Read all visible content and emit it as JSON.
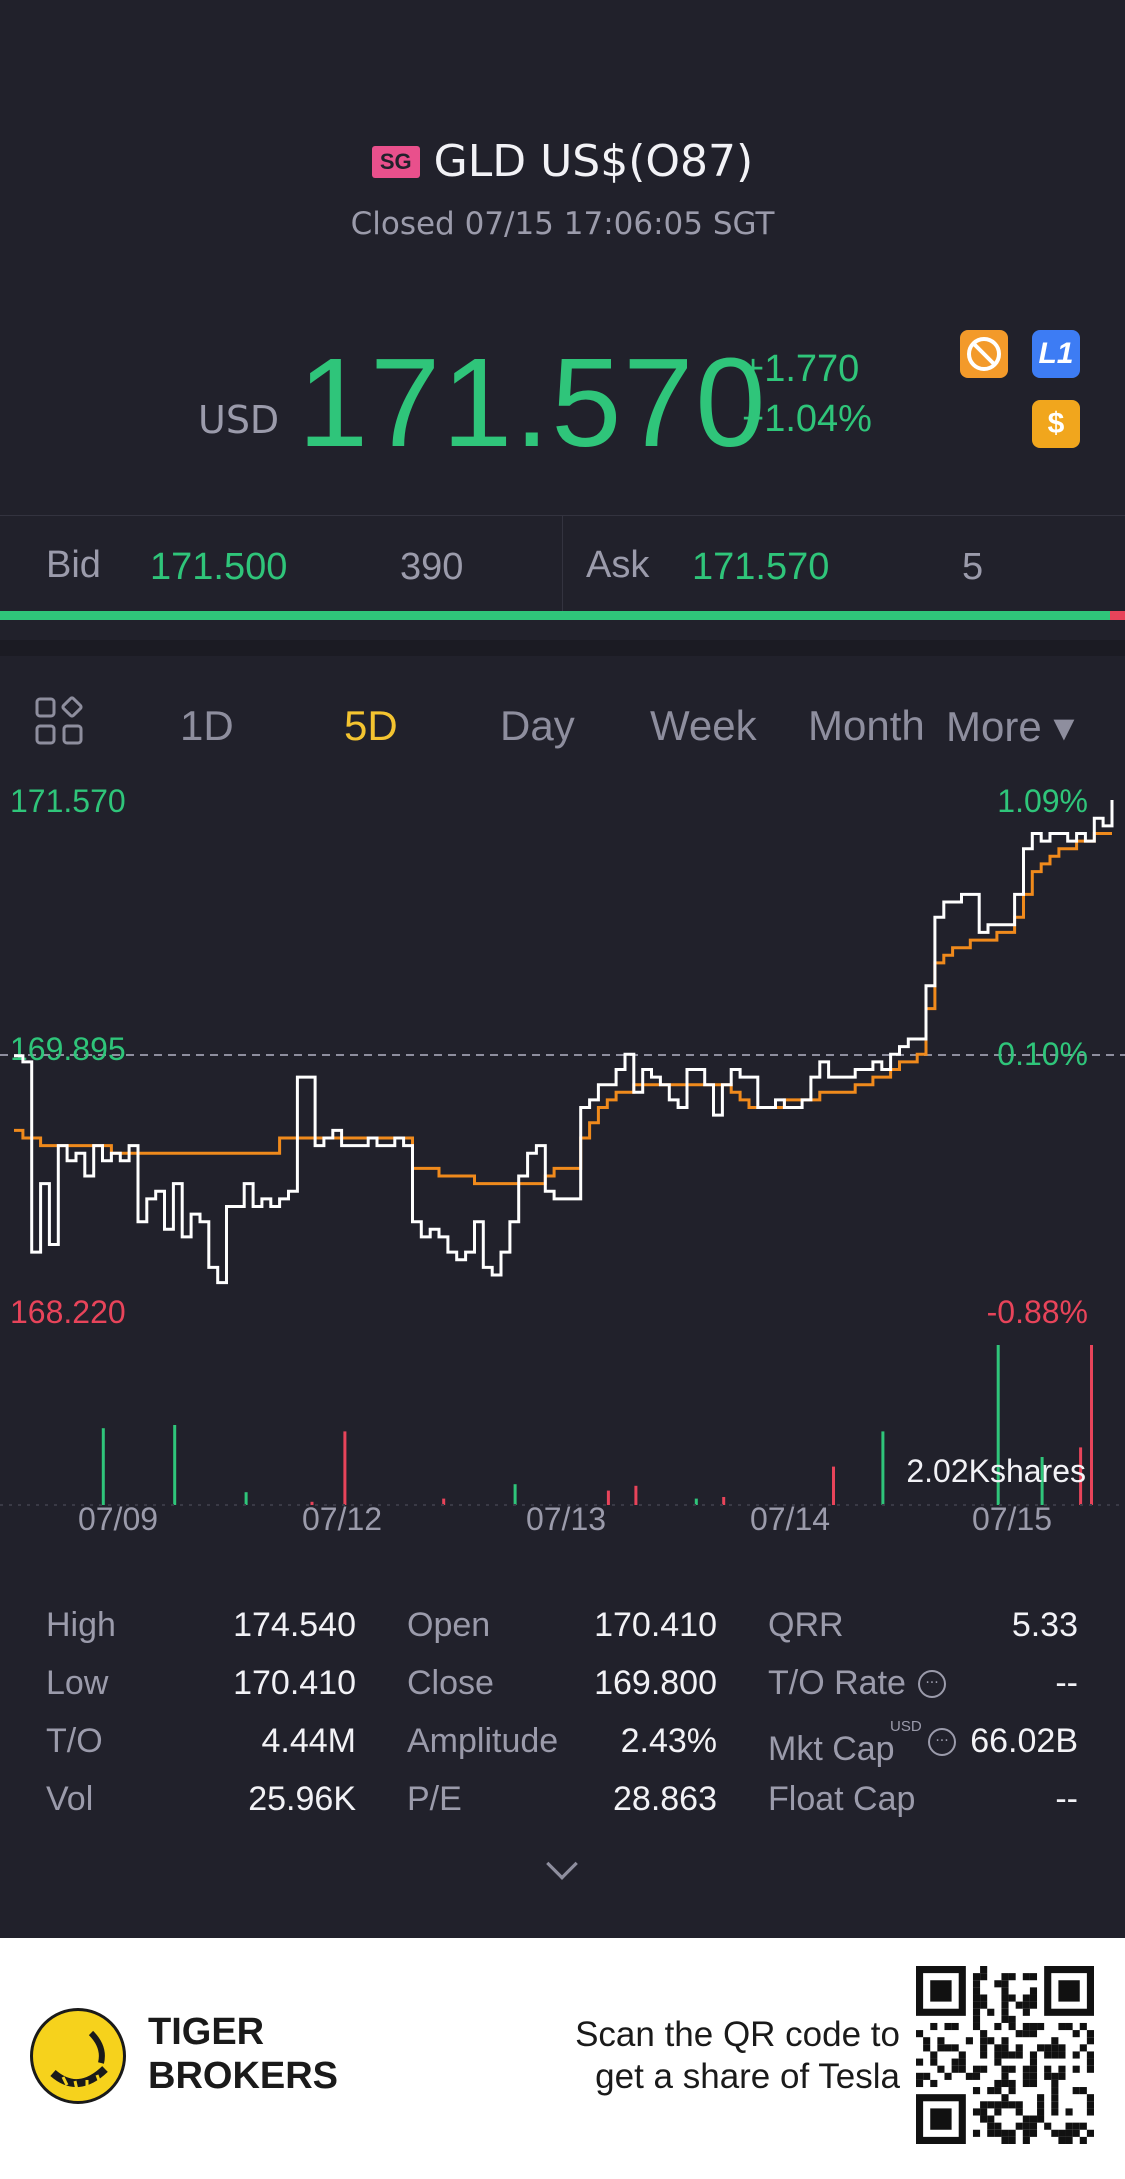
{
  "header": {
    "market_badge": "SG",
    "title": "GLD US$(O87)",
    "status": "Closed 07/15 17:06:05 SGT"
  },
  "quote": {
    "currency": "USD",
    "price": "171.570",
    "change": "+1.770",
    "change_pct": "+1.04%",
    "icons": [
      "no-short-icon",
      "level1-icon",
      "dollar-icon"
    ],
    "l1_label": "L1",
    "dollar_label": "$"
  },
  "bidask": {
    "bid_label": "Bid",
    "bid_price": "171.500",
    "bid_size": "390",
    "ask_label": "Ask",
    "ask_price": "171.570",
    "ask_size": "5",
    "bid_ratio": 0.987
  },
  "tabs": [
    {
      "label": "1D",
      "active": false
    },
    {
      "label": "5D",
      "active": true
    },
    {
      "label": "Day",
      "active": false
    },
    {
      "label": "Week",
      "active": false
    },
    {
      "label": "Month",
      "active": false
    },
    {
      "label": "More ▾",
      "active": false
    }
  ],
  "chart_data": {
    "type": "line",
    "y_labels_left": [
      "171.570",
      "169.895",
      "168.220"
    ],
    "y_labels_right": [
      "1.09%",
      "0.10%",
      "-0.88%"
    ],
    "ylim": [
      168.22,
      171.57
    ],
    "reference_close": 169.895,
    "x_labels": [
      "07/09",
      "07/12",
      "07/13",
      "07/14",
      "07/15"
    ],
    "volume_label": "2.02Kshares",
    "series": [
      {
        "values": [
          169.89,
          169.85,
          168.6,
          169.05,
          168.65,
          169.3,
          169.2,
          169.25,
          169.1,
          169.3,
          169.2,
          169.25,
          169.2,
          169.3,
          168.8,
          168.95,
          169.0,
          168.75,
          169.05,
          168.7,
          168.85,
          168.8,
          168.5,
          168.4,
          168.9,
          168.9,
          169.05,
          168.9,
          168.95,
          168.9,
          168.95,
          169.0,
          169.75,
          169.75,
          169.3,
          169.35,
          169.4,
          169.3,
          169.3,
          169.3,
          169.35,
          169.3,
          169.3,
          169.35,
          169.3,
          168.8,
          168.7,
          168.75,
          168.7,
          168.6,
          168.55,
          168.6,
          168.8,
          168.5,
          168.45,
          168.6,
          168.8,
          169.1,
          169.25,
          169.3,
          169.0,
          168.95,
          168.95,
          168.95,
          169.55,
          169.6,
          169.7,
          169.7,
          169.8,
          169.9,
          169.65,
          169.8,
          169.75,
          169.7,
          169.6,
          169.55,
          169.8,
          169.8,
          169.7,
          169.5,
          169.7,
          169.8,
          169.75,
          169.75,
          169.55,
          169.55,
          169.6,
          169.55,
          169.55,
          169.6,
          169.75,
          169.85,
          169.75,
          169.75,
          169.75,
          169.8,
          169.8,
          169.85,
          169.8,
          169.9,
          169.95,
          170.0,
          170.0,
          170.35,
          170.8,
          170.9,
          170.9,
          170.95,
          170.95,
          170.7,
          170.75,
          170.75,
          170.75,
          170.95,
          171.25,
          171.35,
          171.3,
          171.35,
          171.35,
          171.3,
          171.35,
          171.3,
          171.45,
          171.4,
          171.57
        ]
      },
      {
        "values": [
          169.4,
          169.35,
          169.35,
          169.3,
          169.3,
          169.3,
          169.3,
          169.3,
          169.3,
          169.3,
          169.3,
          169.25,
          169.25,
          169.25,
          169.25,
          169.25,
          169.25,
          169.25,
          169.25,
          169.25,
          169.25,
          169.25,
          169.25,
          169.25,
          169.25,
          169.25,
          169.25,
          169.25,
          169.25,
          169.25,
          169.35,
          169.35,
          169.35,
          169.35,
          169.35,
          169.35,
          169.35,
          169.35,
          169.35,
          169.35,
          169.35,
          169.35,
          169.35,
          169.35,
          169.35,
          169.15,
          169.15,
          169.15,
          169.1,
          169.1,
          169.1,
          169.1,
          169.05,
          169.05,
          169.05,
          169.05,
          169.05,
          169.05,
          169.05,
          169.05,
          169.1,
          169.15,
          169.15,
          169.15,
          169.35,
          169.45,
          169.55,
          169.6,
          169.65,
          169.65,
          169.7,
          169.7,
          169.7,
          169.7,
          169.7,
          169.7,
          169.7,
          169.7,
          169.7,
          169.7,
          169.7,
          169.65,
          169.6,
          169.55,
          169.55,
          169.55,
          169.55,
          169.6,
          169.6,
          169.6,
          169.6,
          169.65,
          169.65,
          169.65,
          169.65,
          169.7,
          169.7,
          169.75,
          169.75,
          169.8,
          169.85,
          169.85,
          169.9,
          170.2,
          170.5,
          170.55,
          170.6,
          170.6,
          170.65,
          170.65,
          170.65,
          170.7,
          170.7,
          170.8,
          170.95,
          171.1,
          171.15,
          171.2,
          171.25,
          171.25,
          171.3,
          171.3,
          171.35,
          171.35,
          171.35
        ]
      }
    ],
    "colors": {
      "price": "#ffffff",
      "average": "#f08a1c",
      "up": "#2fc57a",
      "down": "#e8445a",
      "axis_up": "#2fc57a",
      "axis_down": "#e8445a"
    }
  },
  "volume_bars": [
    {
      "x": 0.08,
      "h": 0.48,
      "c": "up"
    },
    {
      "x": 0.145,
      "h": 0.5,
      "c": "up"
    },
    {
      "x": 0.21,
      "h": 0.08,
      "c": "up"
    },
    {
      "x": 0.27,
      "h": 0.02,
      "c": "down"
    },
    {
      "x": 0.3,
      "h": 0.46,
      "c": "down"
    },
    {
      "x": 0.39,
      "h": 0.04,
      "c": "down"
    },
    {
      "x": 0.455,
      "h": 0.13,
      "c": "up"
    },
    {
      "x": 0.54,
      "h": 0.09,
      "c": "down"
    },
    {
      "x": 0.565,
      "h": 0.12,
      "c": "down"
    },
    {
      "x": 0.62,
      "h": 0.04,
      "c": "up"
    },
    {
      "x": 0.645,
      "h": 0.05,
      "c": "down"
    },
    {
      "x": 0.745,
      "h": 0.24,
      "c": "down"
    },
    {
      "x": 0.79,
      "h": 0.46,
      "c": "up"
    },
    {
      "x": 0.895,
      "h": 1.0,
      "c": "up"
    },
    {
      "x": 0.935,
      "h": 0.3,
      "c": "up"
    },
    {
      "x": 0.97,
      "h": 0.36,
      "c": "down"
    },
    {
      "x": 0.98,
      "h": 1.0,
      "c": "down"
    }
  ],
  "stats": {
    "col1": [
      {
        "label": "High",
        "value": "174.540"
      },
      {
        "label": "Low",
        "value": "170.410"
      },
      {
        "label": "T/O",
        "value": "4.44M"
      },
      {
        "label": "Vol",
        "value": "25.96K"
      }
    ],
    "col2": [
      {
        "label": "Open",
        "value": "170.410"
      },
      {
        "label": "Close",
        "value": "169.800"
      },
      {
        "label": "Amplitude",
        "value": "2.43%"
      },
      {
        "label": "P/E",
        "value": "28.863"
      }
    ],
    "col3": [
      {
        "label": "QRR",
        "value": "5.33"
      },
      {
        "label": "T/O Rate",
        "value": "--"
      },
      {
        "label": "Mkt Cap",
        "value": "66.02B"
      },
      {
        "label": "Float Cap",
        "value": "--"
      }
    ],
    "mkt_cap_currency": "USD"
  },
  "footer": {
    "brand_line1": "TIGER",
    "brand_line2": "BROKERS",
    "promo_line1": "Scan the QR code to",
    "promo_line2": "get a share of Tesla"
  }
}
